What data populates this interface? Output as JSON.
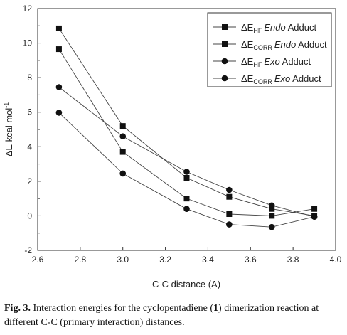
{
  "chart_data": {
    "type": "line",
    "xlabel": "C-C  distance (A)",
    "ylabel": "ΔE kcal mol",
    "ylabel_sup": "-1",
    "xlim": [
      2.6,
      4.0
    ],
    "ylim": [
      -2,
      12
    ],
    "xticks": [
      2.6,
      2.8,
      3.0,
      3.2,
      3.4,
      3.6,
      3.8,
      4.0
    ],
    "xtick_labels": [
      "2.6",
      "2.8",
      "3.0",
      "3.2",
      "3.4",
      "3.6",
      "3.8",
      "4.0"
    ],
    "yticks": [
      -2,
      0,
      2,
      4,
      6,
      8,
      10,
      12
    ],
    "ytick_labels": [
      "-2",
      "0",
      "2",
      "4",
      "6",
      "8",
      "10",
      "12"
    ],
    "grid": false,
    "legend_position": "top-right",
    "series": [
      {
        "marker": "square",
        "legend": {
          "delta": "ΔE",
          "sub": "HF",
          "italic": "Endo",
          "rest": " Adduct"
        },
        "x": [
          2.7,
          3.0,
          3.3,
          3.5,
          3.7,
          3.9
        ],
        "y": [
          10.85,
          5.2,
          2.2,
          1.1,
          0.4,
          0.0
        ]
      },
      {
        "marker": "square",
        "legend": {
          "delta": "ΔE",
          "sub": "CORR",
          "italic": "Endo",
          "rest": " Adduct"
        },
        "x": [
          2.7,
          3.0,
          3.3,
          3.5,
          3.7,
          3.9
        ],
        "y": [
          9.65,
          3.7,
          1.0,
          0.1,
          0.0,
          0.4
        ]
      },
      {
        "marker": "circle",
        "legend": {
          "delta": "ΔE",
          "sub": "HF",
          "italic": "Exo",
          "rest": " Adduct"
        },
        "x": [
          2.7,
          3.0,
          3.3,
          3.5,
          3.7,
          3.9
        ],
        "y": [
          7.45,
          4.6,
          2.55,
          1.5,
          0.6,
          -0.05
        ]
      },
      {
        "marker": "circle",
        "legend": {
          "delta": "ΔE",
          "sub": "CORR",
          "italic": "Exo",
          "rest": " Adduct"
        },
        "x": [
          2.7,
          3.0,
          3.3,
          3.5,
          3.7,
          3.9
        ],
        "y": [
          5.97,
          2.45,
          0.4,
          -0.5,
          -0.65,
          -0.05
        ]
      }
    ]
  },
  "caption": {
    "label": "Fig. 3.",
    "part1": " Interaction energies for the cyclopentadiene (",
    "bold_num": "1",
    "part2": ") dimerization reaction at different C-C (primary interaction) distances."
  }
}
